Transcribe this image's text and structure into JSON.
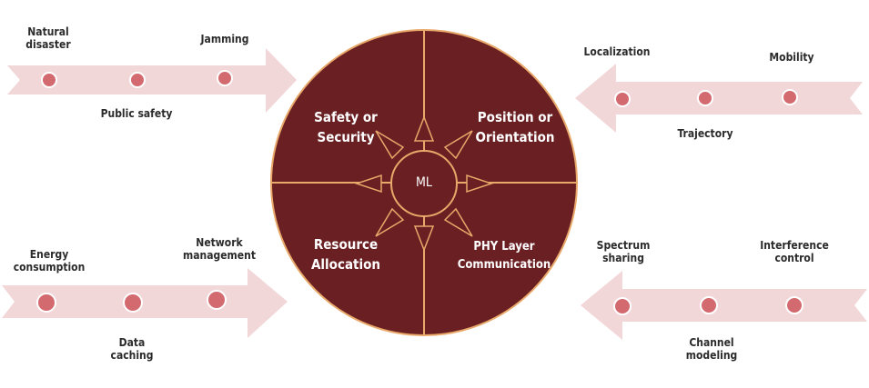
{
  "colors": {
    "circle_fill": "#6a1f22",
    "divider": "#e8a96a",
    "arrow_band": "#f2d7d9",
    "dot_fill": "#d36a6f",
    "dot_stroke": "#ffffff"
  },
  "center": {
    "label": "ML"
  },
  "quadrants": {
    "top_left": "Safety or\nSecurity",
    "top_right": "Position or\nOrientation",
    "bottom_left": "Resource\nAllocation",
    "bottom_right": "PHY Layer\nCommunication"
  },
  "arrows": {
    "top_left": {
      "direction": "right",
      "labels": {
        "a": "Natural\ndisaster",
        "b": "Public safety",
        "c": "Jamming"
      }
    },
    "bottom_left": {
      "direction": "right",
      "labels": {
        "a": "Energy\nconsumption",
        "b": "Data\ncaching",
        "c": "Network\nmanagement"
      }
    },
    "top_right": {
      "direction": "left",
      "labels": {
        "a": "Localization",
        "b": "Trajectory",
        "c": "Mobility"
      }
    },
    "bottom_right": {
      "direction": "left",
      "labels": {
        "a": "Spectrum\nsharing",
        "b": "Channel\nmodeling",
        "c": "Interference\ncontrol"
      }
    }
  }
}
